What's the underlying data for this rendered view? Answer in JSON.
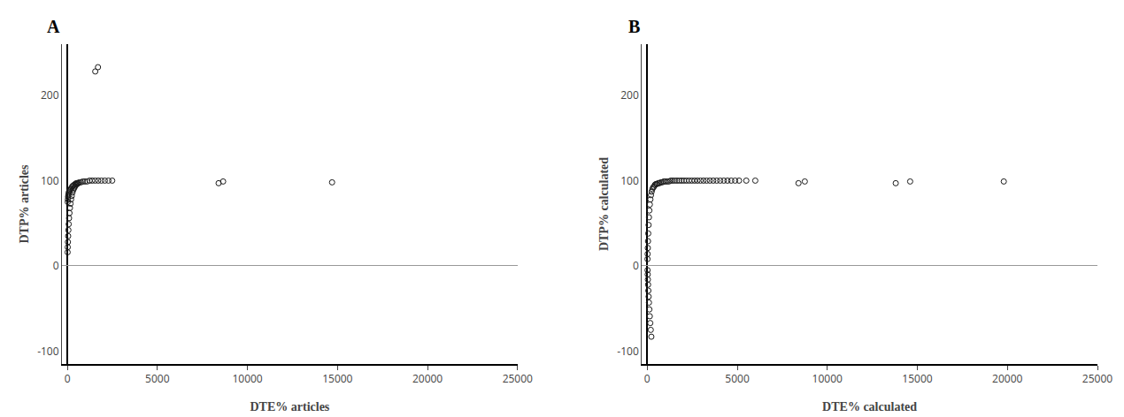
{
  "chart_data": [
    {
      "type": "scatter",
      "title": "A",
      "xlabel": "DTE% articles",
      "ylabel": "DTP% articles",
      "color": "#1a1a1a",
      "marker": "circle-open",
      "grid": false,
      "xlim": [
        -300,
        25000
      ],
      "ylim": [
        -115,
        260
      ],
      "xticks": [
        0,
        5000,
        10000,
        15000,
        20000,
        25000
      ],
      "yticks": [
        -100,
        0,
        100,
        200
      ],
      "x": [
        1550,
        1700,
        20,
        30,
        40,
        55,
        70,
        90,
        115,
        145,
        180,
        220,
        265,
        315,
        370,
        430,
        500,
        575,
        660,
        755,
        860,
        975,
        1100,
        1235,
        1380,
        1540,
        1710,
        1890,
        2080,
        2280,
        2490,
        15,
        22,
        32,
        44,
        58,
        75,
        95,
        118,
        145,
        175,
        208,
        245,
        285,
        328,
        375,
        425,
        480,
        540,
        605,
        8400,
        8650,
        14700
      ],
      "values": [
        228,
        233,
        75,
        78,
        81,
        83,
        85,
        87,
        88,
        89,
        90,
        91,
        93,
        94,
        95,
        96,
        97,
        97,
        98,
        98,
        99,
        99,
        99,
        100,
        100,
        100,
        100,
        100,
        100,
        100,
        100,
        16,
        22,
        28,
        35,
        42,
        49,
        56,
        62,
        68,
        73,
        78,
        82,
        86,
        89,
        91,
        93,
        95,
        96,
        97,
        97,
        99,
        98
      ]
    },
    {
      "type": "scatter",
      "title": "B",
      "xlabel": "DTE% calculated",
      "ylabel": "DTP% calculated",
      "color": "#1a1a1a",
      "marker": "circle-open",
      "grid": false,
      "xlim": [
        -300,
        25000
      ],
      "ylim": [
        -115,
        260
      ],
      "xticks": [
        0,
        5000,
        10000,
        15000,
        20000,
        25000
      ],
      "yticks": [
        -100,
        0,
        100,
        200
      ],
      "x": [
        15,
        22,
        32,
        44,
        58,
        75,
        95,
        118,
        145,
        175,
        208,
        245,
        285,
        328,
        375,
        425,
        480,
        540,
        605,
        675,
        750,
        830,
        915,
        1005,
        1100,
        1200,
        1305,
        1415,
        1530,
        1650,
        1775,
        1905,
        2040,
        2180,
        2325,
        2475,
        2630,
        2790,
        2955,
        3125,
        3300,
        3480,
        3665,
        3855,
        4050,
        4250,
        4455,
        4665,
        4880,
        5100,
        5500,
        6000,
        18,
        26,
        36,
        48,
        62,
        78,
        97,
        118,
        142,
        168,
        197,
        228,
        8400,
        8750,
        13800,
        14600,
        19800
      ],
      "values": [
        8,
        14,
        21,
        29,
        38,
        48,
        57,
        65,
        72,
        78,
        83,
        87,
        90,
        92,
        93,
        95,
        96,
        96,
        97,
        97,
        98,
        98,
        99,
        99,
        99,
        99,
        100,
        100,
        100,
        100,
        100,
        100,
        100,
        100,
        100,
        100,
        100,
        100,
        100,
        100,
        100,
        100,
        100,
        100,
        100,
        100,
        100,
        100,
        100,
        100,
        100,
        100,
        -5,
        -10,
        -16,
        -22,
        -29,
        -36,
        -43,
        -51,
        -59,
        -67,
        -75,
        -83,
        97,
        99,
        97,
        99,
        99
      ]
    }
  ]
}
